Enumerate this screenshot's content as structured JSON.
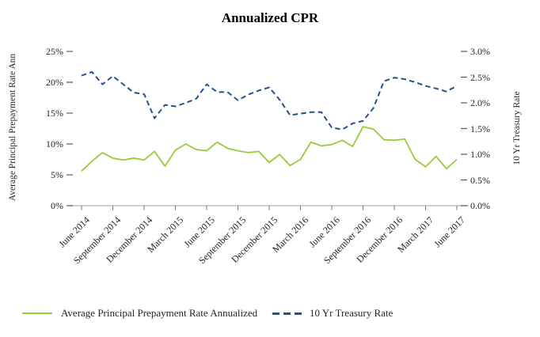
{
  "chart_data": {
    "type": "line",
    "title": "Annualized CPR",
    "grid": false,
    "legend_position": "bottom",
    "categories": [
      "June 2014",
      "July 2014",
      "August 2014",
      "September 2014",
      "October 2014",
      "November 2014",
      "December 2014",
      "January 2015",
      "February 2015",
      "March 2015",
      "April 2015",
      "May 2015",
      "June 2015",
      "July 2015",
      "August 2015",
      "September 2015",
      "October 2015",
      "November 2015",
      "December 2015",
      "January 2016",
      "February 2016",
      "March 2016",
      "April 2016",
      "May 2016",
      "June 2016",
      "July 2016",
      "August 2016",
      "September 2016",
      "October 2016",
      "November 2016",
      "December 2016",
      "January 2017",
      "February 2017",
      "March 2017",
      "April 2017",
      "May 2017",
      "June 2017"
    ],
    "x_tick_labels": [
      "June 2014",
      "September 2014",
      "December 2014",
      "March 2015",
      "June 2015",
      "September 2015",
      "December 2015",
      "March 2016",
      "June 2016",
      "September 2016",
      "December 2016",
      "March 2017",
      "June 2017"
    ],
    "left_axis": {
      "label": "Average Principal Prepayment Rate Ann",
      "ticks": [
        "0%",
        "5%",
        "10%",
        "15%",
        "20%",
        "25%"
      ],
      "min": 0,
      "max": 25,
      "step": 5,
      "unit": "%"
    },
    "right_axis": {
      "label": "10 Yr Treasury Rate",
      "ticks": [
        "0.0%",
        "0.5%",
        "1.0%",
        "1.5%",
        "2.0%",
        "2.5%",
        "3.0%"
      ],
      "min": 0,
      "max": 3,
      "step": 0.5,
      "unit": "%"
    },
    "series": [
      {
        "name": "Average Principal Prepayment Rate Annualized",
        "axis": "left",
        "style": "solid",
        "color": "#9aca3c",
        "values": [
          5.6,
          7.2,
          8.6,
          7.7,
          7.4,
          7.7,
          7.4,
          8.8,
          6.4,
          9.0,
          10.0,
          9.1,
          8.9,
          10.3,
          9.3,
          8.9,
          8.6,
          8.8,
          7.0,
          8.3,
          6.5,
          7.5,
          10.3,
          9.7,
          9.9,
          10.6,
          9.6,
          12.8,
          12.4,
          10.7,
          10.6,
          10.8,
          7.5,
          6.3,
          8.0,
          6.0,
          7.5
        ]
      },
      {
        "name": "10 Yr Treasury Rate",
        "axis": "right",
        "style": "dashed",
        "color": "#26508e",
        "values": [
          2.53,
          2.6,
          2.36,
          2.52,
          2.36,
          2.2,
          2.17,
          1.7,
          1.96,
          1.93,
          2.0,
          2.08,
          2.36,
          2.21,
          2.21,
          2.05,
          2.16,
          2.24,
          2.3,
          2.06,
          1.76,
          1.79,
          1.82,
          1.82,
          1.52,
          1.48,
          1.6,
          1.65,
          1.9,
          2.42,
          2.49,
          2.46,
          2.4,
          2.33,
          2.28,
          2.22,
          2.33
        ]
      }
    ]
  }
}
